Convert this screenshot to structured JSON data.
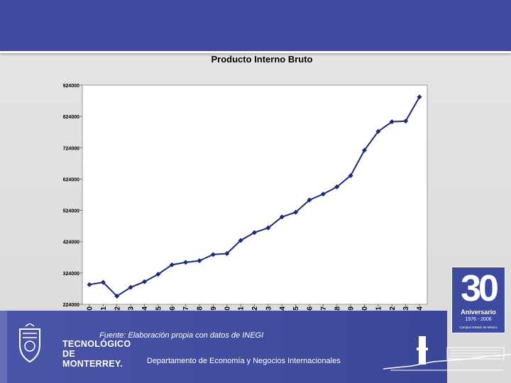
{
  "chart_data": {
    "type": "line",
    "title": "Producto Interno Bruto",
    "xlabel": "",
    "ylabel": "",
    "ylim": [
      224000,
      924000
    ],
    "yticks": [
      224000,
      324000,
      424000,
      524000,
      624000,
      724000,
      824000,
      924000
    ],
    "ytick_labels": [
      "224000",
      "324000",
      "424000",
      "524000",
      "624000",
      "724000",
      "824000",
      "924000"
    ],
    "categories": [
      "1930",
      "1931",
      "1932",
      "1933",
      "1934",
      "1935",
      "1936",
      "1937",
      "1938",
      "1939",
      "1940",
      "1941",
      "1942",
      "1943",
      "1944",
      "1945",
      "1946",
      "1947",
      "1948",
      "1949",
      "1950",
      "1951",
      "1952",
      "1953",
      "1954"
    ],
    "series": [
      {
        "name": "PIB",
        "color": "#1c2a7a",
        "values": [
          287000,
          294000,
          250000,
          278000,
          296000,
          320000,
          350000,
          358000,
          363000,
          383000,
          386000,
          428000,
          453000,
          468000,
          503000,
          518000,
          557000,
          576000,
          599000,
          635000,
          716000,
          776000,
          807000,
          809000,
          886000
        ]
      }
    ],
    "grid": false,
    "legend": "none"
  },
  "footer": {
    "source": "Fuente: Elaboración propia con datos de INEGI",
    "department": "Departamento de Economía y Negocios Internacionales"
  },
  "logo": {
    "line1": "TECNOLÓGICO",
    "line2": "DE MONTERREY."
  },
  "anniversary": {
    "number": "30",
    "label": "Aniversario",
    "years": "1976 - 2006",
    "campus": "Campus Estado de México"
  },
  "colors": {
    "banner": "#3f4a9e",
    "line": "#1c2a7a"
  }
}
